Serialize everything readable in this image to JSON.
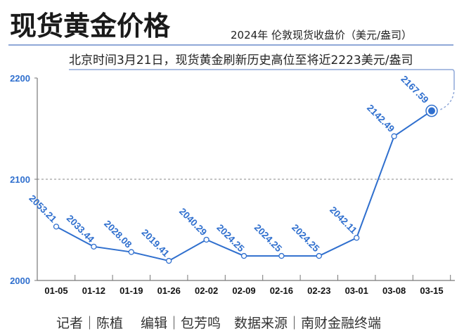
{
  "header": {
    "title": "现货黄金价格",
    "subtitle": "2024年 伦敦现货收盘价（美元/盎司）",
    "note": "北京时间3月21日，现货黄金刷新历史高位至将近2223美元/盎司"
  },
  "chart_data": {
    "type": "line",
    "title": "现货黄金价格",
    "subtitle": "2024年 伦敦现货收盘价（美元/盎司）",
    "categories": [
      "01-05",
      "01-12",
      "01-19",
      "01-26",
      "02-02",
      "02-09",
      "02-16",
      "02-23",
      "03-01",
      "03-08",
      "03-15"
    ],
    "values": [
      2053.21,
      2033.44,
      2028.08,
      2019.41,
      2040.29,
      2024.25,
      2024.25,
      2024.25,
      2042.11,
      2142.49,
      2167.59
    ],
    "data_labels": [
      "2053.21",
      "2033.44",
      "2028.08",
      "2019.41",
      "2040.29",
      "2024.25",
      "2024.25",
      "2024.25",
      "2042.11",
      "2142.49",
      "2167.59"
    ],
    "yticks": [
      "2000",
      "2100",
      "2200"
    ],
    "ylim": [
      2000,
      2200
    ],
    "grid": "dashed line at 2100",
    "highlight_last_point": true,
    "line_color": "#2f6fce",
    "accent_color": "#8fa8d8"
  },
  "footer": {
    "credit": "记者｜陈植　 编辑｜包芳鸣　数据来源｜南财金融终端"
  }
}
